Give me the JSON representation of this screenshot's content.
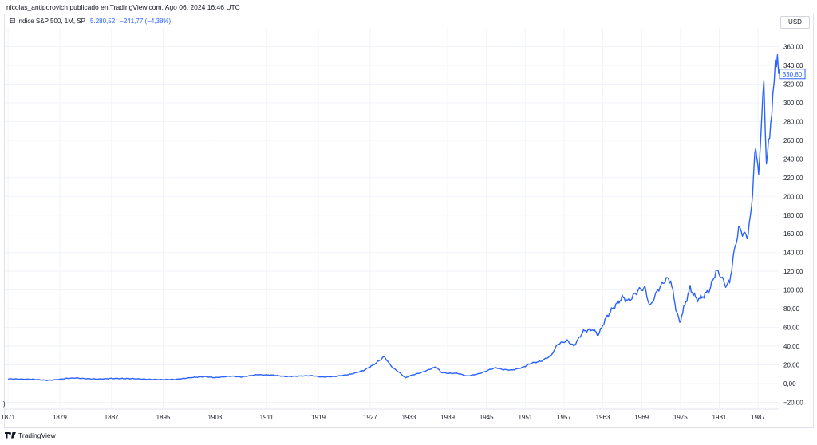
{
  "header": {
    "publisher": "nicolas_antiporovich publicado en TradingView.com, Ago 06, 2024 16:46 UTC"
  },
  "legend": {
    "title": "El Índice S&P 500, 1M, SP",
    "price": "5.280,52",
    "change": "−241,77 (−4,38%)"
  },
  "currency": "USD",
  "footer": {
    "brand": "TradingView"
  },
  "left_marker": ")",
  "colors": {
    "line": "#2962ff",
    "grid": "#f0f3fa",
    "last_price_tag": "#2962ff"
  },
  "chart_data": {
    "type": "line",
    "title": "",
    "xlabel": "",
    "ylabel": "",
    "xlim": [
      1870.5,
      1990.2
    ],
    "ylim": [
      -20,
      370
    ],
    "x_ticks": [
      1871,
      1879,
      1887,
      1895,
      1903,
      1911,
      1919,
      1927,
      1933,
      1939,
      1945,
      1951,
      1957,
      1963,
      1969,
      1975,
      1981,
      1987
    ],
    "x_tick_labels": [
      "1871",
      "1879",
      "1887",
      "1895",
      "1903",
      "1911",
      "1919",
      "1927",
      "1933",
      "1939",
      "1945",
      "1951",
      "1957",
      "1963",
      "1969",
      "1975",
      "1981",
      "1987"
    ],
    "y_ticks": [
      -20,
      0,
      20,
      40,
      60,
      80,
      100,
      120,
      140,
      160,
      180,
      200,
      220,
      240,
      260,
      280,
      300,
      320,
      340,
      360
    ],
    "y_tick_labels": [
      "−20,00",
      "0,00",
      "20,00",
      "40,00",
      "60,00",
      "80,00",
      "100,00",
      "120,00",
      "140,00",
      "160,00",
      "180,00",
      "200,00",
      "220,00",
      "240,00",
      "260,00",
      "280,00",
      "300,00",
      "320,00",
      "340,00",
      "360,00"
    ],
    "last_value": 330.8,
    "last_value_label": "330,80",
    "grid": true,
    "series": [
      {
        "x": [
          1871.0,
          1873.0,
          1875.0,
          1877.0,
          1878.0,
          1880.0,
          1881.5,
          1883.0,
          1885.0,
          1887.0,
          1890.0,
          1893.0,
          1895.0,
          1897.0,
          1899.5,
          1901.5,
          1903.0,
          1905.5,
          1907.0,
          1909.5,
          1912.0,
          1914.0,
          1916.0,
          1918.0,
          1919.5,
          1921.5,
          1924.0,
          1926.0,
          1927.5,
          1928.5,
          1929.2,
          1929.9,
          1930.5,
          1931.5,
          1932.5,
          1933.0,
          1934.0,
          1935.0,
          1936.5,
          1937.2,
          1938.0,
          1939.0,
          1940.5,
          1942.0,
          1943.5,
          1944.5,
          1945.5,
          1946.5,
          1947.5,
          1949.0,
          1950.5,
          1952.0,
          1953.5,
          1955.0,
          1956.0,
          1957.5,
          1958.5,
          1960.0,
          1961.5,
          1962.3,
          1963.5,
          1964.5,
          1966.0,
          1967.0,
          1968.5,
          1969.5,
          1970.3,
          1971.5,
          1972.8,
          1973.5,
          1974.3,
          1974.9,
          1975.5,
          1976.5,
          1977.5,
          1978.3,
          1979.5,
          1980.5,
          1981.0,
          1982.0,
          1982.6,
          1983.3,
          1984.0,
          1984.6,
          1985.3,
          1986.0,
          1986.5,
          1987.1,
          1987.6,
          1987.9,
          1988.3,
          1988.8,
          1989.3,
          1989.7,
          1990.0,
          1990.2
        ],
        "y": [
          5,
          4.8,
          4.5,
          3.5,
          3.8,
          5.5,
          6,
          5.2,
          4.8,
          5.5,
          5.3,
          4.5,
          4.3,
          4.5,
          6.5,
          7.5,
          6.3,
          8,
          7,
          9.5,
          9,
          7.5,
          8,
          8.5,
          7,
          7.5,
          10,
          14,
          20,
          25,
          29,
          22,
          17,
          12,
          6,
          8,
          10,
          12,
          16,
          18,
          12,
          11,
          11,
          8,
          10,
          12,
          15,
          17,
          15,
          14.5,
          17,
          22,
          24,
          30,
          42,
          46,
          40,
          56,
          58,
          52,
          70,
          80,
          92,
          88,
          100,
          102,
          82,
          100,
          112,
          110,
          80,
          65,
          80,
          102,
          90,
          92,
          100,
          120,
          118,
          105,
          108,
          140,
          165,
          162,
          156,
          185,
          250,
          228,
          280,
          330,
          230,
          270,
          300,
          350,
          345,
          330.8
        ]
      }
    ]
  }
}
